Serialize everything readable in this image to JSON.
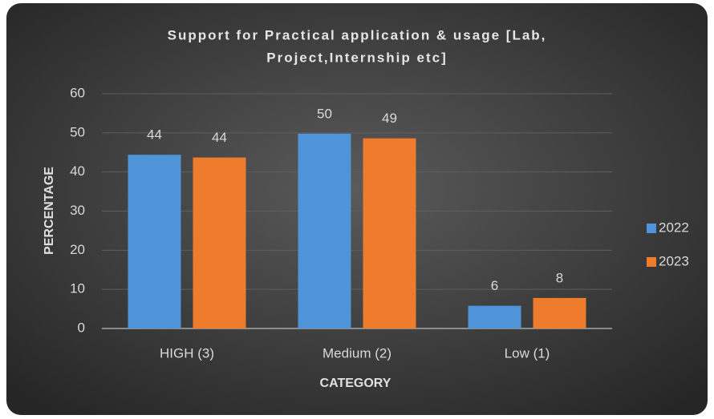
{
  "chart_data": {
    "type": "bar",
    "title": [
      "Support for Practical application & usage [Lab,",
      "Project,Internship etc]"
    ],
    "x_label": "CATEGORY",
    "y_label": "PERCENTAGE",
    "categories": [
      "HIGH (3)",
      "Medium (2)",
      "Low (1)"
    ],
    "series": [
      {
        "name": "2022",
        "color": "#4f93d8",
        "values": [
          44.4,
          49.8,
          5.8
        ],
        "value_labels": [
          "44",
          "50",
          "6"
        ]
      },
      {
        "name": "2023",
        "color": "#ef7b2c",
        "values": [
          43.7,
          48.6,
          7.8
        ],
        "value_labels": [
          "44",
          "49",
          "8"
        ]
      }
    ],
    "ylim": [
      0,
      60
    ],
    "yticks": [
      0,
      10,
      20,
      30,
      40,
      50,
      60
    ],
    "grid": true,
    "legend": "right"
  }
}
